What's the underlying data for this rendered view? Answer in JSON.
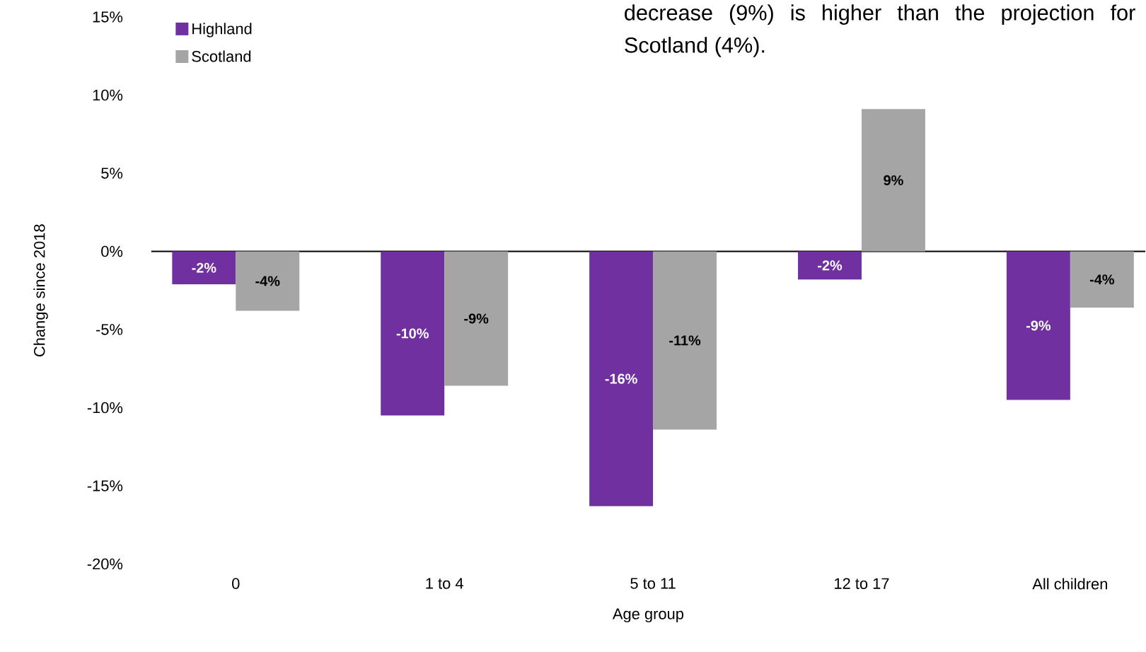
{
  "chart_data": {
    "type": "bar",
    "xlabel": "Age group",
    "ylabel": "Change since 2018",
    "categories": [
      "0",
      "1 to 4",
      "5 to 11",
      "12 to 17",
      "All children"
    ],
    "series": [
      {
        "name": "Highland",
        "color": "#7030a0",
        "values": [
          -2.1,
          -10.5,
          -16.3,
          -1.8,
          -9.5
        ],
        "value_labels": [
          "-2%",
          "-10%",
          "-16%",
          "-2%",
          "-9%"
        ]
      },
      {
        "name": "Scotland",
        "color": "#a5a5a5",
        "values": [
          -3.8,
          -8.6,
          -11.4,
          9.1,
          -3.6
        ],
        "value_labels": [
          "-4%",
          "-9%",
          "-11%",
          "9%",
          "-4%"
        ]
      }
    ],
    "ylim": [
      -20,
      15
    ],
    "yticks": [
      {
        "value": -20,
        "label": "-20%"
      },
      {
        "value": -15,
        "label": "-15%"
      },
      {
        "value": -10,
        "label": "-10%"
      },
      {
        "value": -5,
        "label": "-5%"
      },
      {
        "value": 0,
        "label": "0%"
      },
      {
        "value": 5,
        "label": "5%"
      },
      {
        "value": 10,
        "label": "10%"
      },
      {
        "value": 15,
        "label": "15%"
      }
    ],
    "legend": "top left",
    "annotations": [
      "decrease (9%) is higher than the projection for Scotland (4%)."
    ]
  }
}
